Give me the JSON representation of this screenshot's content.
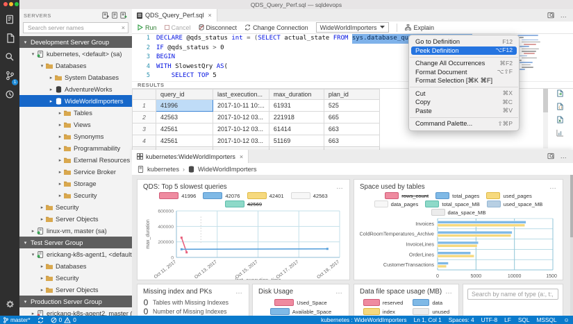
{
  "title_bar": {
    "title": "QDS_Query_Perf.sql — sqldevops"
  },
  "activity_bar": {
    "items": [
      {
        "name": "connections",
        "badge": ""
      },
      {
        "name": "explorer",
        "badge": ""
      },
      {
        "name": "search",
        "badge": ""
      },
      {
        "name": "source-control",
        "badge": "1"
      },
      {
        "name": "task-history",
        "badge": ""
      }
    ]
  },
  "sidebar": {
    "title": "SERVERS",
    "search_placeholder": "Search server names",
    "tree": [
      {
        "label": "Development Server Group",
        "header": true
      },
      {
        "label": "kubernetes, <default> (sa)",
        "icon": "server",
        "status": "green",
        "indent": 1,
        "chevron": "open"
      },
      {
        "label": "Databases",
        "icon": "folder",
        "indent": 2,
        "chevron": "open"
      },
      {
        "label": "System Databases",
        "icon": "folder",
        "indent": 3,
        "chevron": "closed"
      },
      {
        "label": "AdventureWorks",
        "icon": "database",
        "indent": 3,
        "chevron": "closed"
      },
      {
        "label": "WideWorldImporters",
        "icon": "database",
        "indent": 3,
        "chevron": "closed",
        "selected": true
      },
      {
        "label": "Tables",
        "icon": "folder",
        "indent": 4,
        "chevron": "closed"
      },
      {
        "label": "Views",
        "icon": "folder",
        "indent": 4,
        "chevron": "closed"
      },
      {
        "label": "Synonyms",
        "icon": "folder",
        "indent": 4,
        "chevron": "closed"
      },
      {
        "label": "Programmability",
        "icon": "folder",
        "indent": 4,
        "chevron": "closed"
      },
      {
        "label": "External Resources",
        "icon": "folder",
        "indent": 4,
        "chevron": "closed"
      },
      {
        "label": "Service Broker",
        "icon": "folder",
        "indent": 4,
        "chevron": "closed"
      },
      {
        "label": "Storage",
        "icon": "folder",
        "indent": 4,
        "chevron": "closed"
      },
      {
        "label": "Security",
        "icon": "folder",
        "indent": 4,
        "chevron": "closed"
      },
      {
        "label": "Security",
        "icon": "folder",
        "indent": 2,
        "chevron": "closed"
      },
      {
        "label": "Server Objects",
        "icon": "folder",
        "indent": 2,
        "chevron": "closed"
      },
      {
        "label": "linux-vm, master (sa)",
        "icon": "server",
        "status": "green",
        "indent": 1,
        "chevron": "closed"
      },
      {
        "label": "Test Server Group",
        "header": true
      },
      {
        "label": "erickang-k8s-agent1, <default> (sa)",
        "icon": "server",
        "status": "green",
        "indent": 1,
        "chevron": "open"
      },
      {
        "label": "Databases",
        "icon": "folder",
        "indent": 2,
        "chevron": "closed"
      },
      {
        "label": "Security",
        "icon": "folder",
        "indent": 2,
        "chevron": "closed"
      },
      {
        "label": "Server Objects",
        "icon": "folder",
        "indent": 2,
        "chevron": "closed"
      },
      {
        "label": "Production Server Group",
        "header": true
      },
      {
        "label": "erickang-k8s-agent2, master (sa)",
        "icon": "server",
        "status": "red",
        "indent": 1,
        "chevron": "closed"
      }
    ]
  },
  "editor": {
    "tab_label": "QDS_Query_Perf.sql",
    "toolbar": {
      "run": "Run",
      "cancel": "Cancel",
      "disconnect": "Disconnect",
      "change_connection": "Change Connection",
      "database": "WideWorldImporters",
      "explain": "Explain"
    },
    "code_lines": [
      {
        "num": "1",
        "tokens": [
          [
            "kw",
            "DECLARE "
          ],
          [
            "pl",
            "@qds_status "
          ],
          [
            "kw",
            "int "
          ],
          [
            "op",
            "= ("
          ],
          [
            "kw",
            "SELECT "
          ],
          [
            "pl",
            "actual_state "
          ],
          [
            "kw",
            "FROM "
          ],
          [
            "sel",
            "sys.database_query_store_options"
          ]
        ]
      },
      {
        "num": "2",
        "tokens": [
          [
            "kw",
            "IF "
          ],
          [
            "pl",
            "@qds_status "
          ],
          [
            "op",
            "> "
          ],
          [
            "pl",
            "0"
          ]
        ]
      },
      {
        "num": "3",
        "tokens": [
          [
            "kw",
            "BEGIN"
          ]
        ]
      },
      {
        "num": "4",
        "tokens": [
          [
            "kw",
            "WITH "
          ],
          [
            "pl",
            "SlowestQry "
          ],
          [
            "kw",
            "AS"
          ],
          [
            "pl",
            "("
          ]
        ]
      },
      {
        "num": "5",
        "tokens": [
          [
            "pl",
            "    "
          ],
          [
            "kw",
            "SELECT TOP "
          ],
          [
            "pl",
            "5"
          ]
        ]
      }
    ]
  },
  "context_menu": {
    "items": [
      {
        "label": "Go to Definition",
        "shortcut": "F12"
      },
      {
        "label": "Peek Definition",
        "shortcut": "⌥F12",
        "highlighted": true
      },
      {
        "divider": true
      },
      {
        "label": "Change All Occurrences",
        "shortcut": "⌘F2"
      },
      {
        "label": "Format Document",
        "shortcut": "⌥⇧F"
      },
      {
        "label": "Format Selection [⌘K ⌘F]",
        "shortcut": ""
      },
      {
        "divider": true
      },
      {
        "label": "Cut",
        "shortcut": "⌘X"
      },
      {
        "label": "Copy",
        "shortcut": "⌘C"
      },
      {
        "label": "Paste",
        "shortcut": "⌘V"
      },
      {
        "divider": true
      },
      {
        "label": "Command Palette...",
        "shortcut": "⇧⌘P"
      }
    ]
  },
  "results": {
    "label": "RESULTS",
    "columns": [
      "query_id",
      "last_execution...",
      "max_duration",
      "plan_id"
    ],
    "rows": [
      [
        "41996",
        "2017-10-11 10:...",
        "61931",
        "525"
      ],
      [
        "42563",
        "2017-10-12 03...",
        "221918",
        "665"
      ],
      [
        "42561",
        "2017-10-12 03...",
        "61414",
        "663"
      ],
      [
        "42561",
        "2017-10-12 03...",
        "51169",
        "663"
      ],
      [
        "42563",
        "2017-10-12 03...",
        "563056",
        "665"
      ]
    ]
  },
  "dashboard": {
    "tab_label": "kubernetes:WideWorldImporters",
    "breadcrumb": [
      "kubernetes",
      "WideWorldImporters"
    ],
    "search_placeholder": "Search by name of type (a:, t:, v:, f..."
  },
  "chart_data": [
    {
      "type": "line",
      "title": "QDS: Top 5 slowest queries",
      "xlabel": "last_execution_time",
      "ylabel": "max_duration",
      "ylim": [
        0,
        600000
      ],
      "yticks": [
        0,
        200000,
        400000,
        600000
      ],
      "xtick_labels": [
        "Oct 11, 2017",
        "Oct 13, 2017",
        "Oct 15, 2017",
        "Oct 17, 2017",
        "Oct 19, 2017"
      ],
      "xlim_days": [
        0,
        8
      ],
      "legend": [
        {
          "name": "41996",
          "color": "#ef8ba0",
          "border": "#d15b77"
        },
        {
          "name": "42076",
          "color": "#7fb9e6",
          "border": "#5795cc"
        },
        {
          "name": "42401",
          "color": "#f6d97e",
          "border": "#dfba45"
        },
        {
          "name": "42563",
          "color": "#f7f7f7",
          "border": "#d9d9d9"
        },
        {
          "name": "42569",
          "color": "#8ed9c8",
          "border": "#5cbcab",
          "hidden": true
        }
      ],
      "series": [
        {
          "name": "41996",
          "color": "#e8607d",
          "points": [
            [
              0.25,
              255000
            ],
            [
              0.5,
              65000
            ]
          ]
        },
        {
          "name": "42076",
          "color": "#5aa2dc",
          "points": [
            [
              0.25,
              105000
            ],
            [
              7.4,
              110000
            ]
          ]
        }
      ],
      "marker_day": 1.2
    },
    {
      "type": "bar",
      "orientation": "horizontal",
      "title": "Space used by tables",
      "categories": [
        "Invoices",
        "ColdRoomTemperatures_Archive",
        "InvoiceLines",
        "OrderLines",
        "CustomerTransactions"
      ],
      "xlim": [
        0,
        15000
      ],
      "xticks": [
        0,
        5000,
        10000,
        15000
      ],
      "legend": [
        {
          "name": "rows_count",
          "color": "#ef8ba0",
          "border": "#d15b77",
          "hidden": true
        },
        {
          "name": "total_pages",
          "color": "#7fb9e6",
          "border": "#5795cc"
        },
        {
          "name": "used_pages",
          "color": "#f6d97e",
          "border": "#dfba45"
        },
        {
          "name": "data_pages",
          "color": "#f7f7f7",
          "border": "#d9d9d9"
        },
        {
          "name": "total_space_MB",
          "color": "#8ed9c8",
          "border": "#5cbcab"
        },
        {
          "name": "used_space_MB",
          "color": "#b7cfe3",
          "border": "#93b6d4"
        },
        {
          "name": "data_space_MB",
          "color": "#ececec",
          "border": "#cfcfcf"
        }
      ],
      "series": [
        {
          "name": "total_pages",
          "color": "#7fb9e6",
          "values": [
            11500,
            9700,
            5300,
            4300,
            1400
          ]
        },
        {
          "name": "used_pages",
          "color": "#f6d97e",
          "values": [
            11350,
            9550,
            5150,
            4750,
            1150
          ]
        }
      ]
    },
    {
      "type": "table",
      "title": "Missing index and PKs",
      "stats": [
        {
          "value": "0",
          "label": "Tables with Missing Indexes"
        },
        {
          "value": "0",
          "label": "Number of Missing Indexes"
        },
        {
          "value": "0",
          "label": ""
        }
      ]
    },
    {
      "type": "pie",
      "title": "Disk Usage",
      "legend": [
        {
          "name": "Used_Space",
          "color": "#ef8ba0",
          "border": "#d15b77"
        },
        {
          "name": "Available_Space",
          "color": "#7fb9e6",
          "border": "#5795cc"
        }
      ]
    },
    {
      "type": "bar",
      "title": "Data file space usage (MB)",
      "legend": [
        {
          "name": "reserved",
          "color": "#ef8ba0",
          "border": "#d15b77"
        },
        {
          "name": "data",
          "color": "#7fb9e6",
          "border": "#5795cc"
        },
        {
          "name": "index",
          "color": "#f6d97e",
          "border": "#dfba45"
        },
        {
          "name": "unused",
          "color": "#ececec",
          "border": "#cfcfcf"
        }
      ]
    }
  ],
  "status_bar": {
    "branch": "master*",
    "errors": "0",
    "warnings": "0",
    "right": [
      "kubernetes : WideWorldImporters",
      "Ln 1, Col 1",
      "Spaces: 4",
      "UTF-8",
      "LF",
      "SQL",
      "MSSQL"
    ]
  }
}
